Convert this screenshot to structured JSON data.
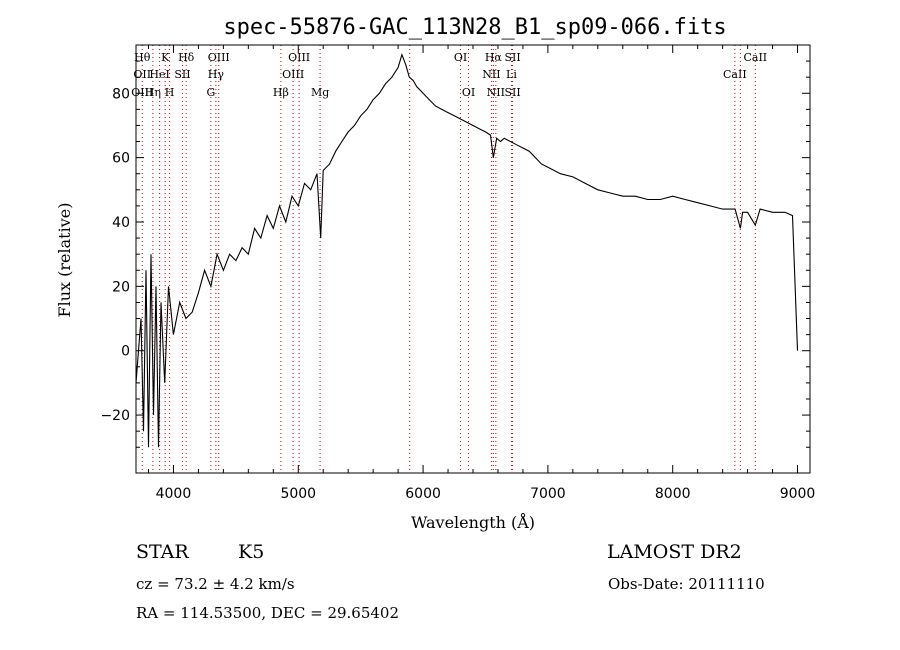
{
  "chart_data": {
    "type": "line",
    "title": "spec-55876-GAC_113N28_B1_sp09-066.fits",
    "xlabel": "Wavelength (Å)",
    "ylabel": "Flux (relative)",
    "xlim": [
      3700,
      9100
    ],
    "ylim": [
      -38,
      95
    ],
    "xticks": [
      4000,
      5000,
      6000,
      7000,
      8000,
      9000
    ],
    "yticks": [
      -20,
      0,
      20,
      40,
      60,
      80
    ],
    "series": [
      {
        "x": [
          3700,
          3740,
          3760,
          3780,
          3800,
          3820,
          3840,
          3860,
          3880,
          3900,
          3930,
          3960,
          4000,
          4050,
          4100,
          4150,
          4200,
          4250,
          4300,
          4350,
          4400,
          4450,
          4500,
          4550,
          4600,
          4650,
          4700,
          4750,
          4800,
          4850,
          4900,
          4950,
          5000,
          5050,
          5100,
          5150,
          5180,
          5200,
          5250,
          5300,
          5350,
          5400,
          5450,
          5500,
          5550,
          5600,
          5650,
          5700,
          5750,
          5800,
          5830,
          5860,
          5890,
          5920,
          5950,
          6000,
          6050,
          6100,
          6150,
          6200,
          6250,
          6300,
          6350,
          6400,
          6450,
          6500,
          6540,
          6563,
          6590,
          6620,
          6650,
          6700,
          6750,
          6800,
          6850,
          6900,
          6950,
          7000,
          7100,
          7200,
          7300,
          7400,
          7500,
          7600,
          7700,
          7800,
          7900,
          8000,
          8100,
          8200,
          8300,
          8400,
          8500,
          8542,
          8560,
          8600,
          8662,
          8700,
          8800,
          8900,
          8960,
          9000
        ],
        "y": [
          -10,
          10,
          -25,
          25,
          -30,
          30,
          -20,
          20,
          -30,
          15,
          -10,
          20,
          5,
          15,
          10,
          12,
          18,
          25,
          20,
          30,
          25,
          30,
          28,
          32,
          30,
          38,
          35,
          42,
          38,
          45,
          40,
          48,
          45,
          52,
          50,
          55,
          35,
          56,
          58,
          62,
          65,
          68,
          70,
          73,
          75,
          78,
          80,
          83,
          85,
          88,
          92,
          89,
          85,
          84,
          82,
          80,
          78,
          76,
          75,
          74,
          73,
          72,
          71,
          70,
          69,
          68,
          67,
          60,
          66,
          65,
          66,
          65,
          64,
          63,
          62,
          60,
          58,
          57,
          55,
          54,
          52,
          50,
          49,
          48,
          48,
          47,
          47,
          48,
          47,
          46,
          45,
          44,
          44,
          38,
          43,
          43,
          39,
          44,
          43,
          43,
          42,
          0
        ]
      }
    ],
    "lines": [
      {
        "wl": 3750,
        "labels": [
          "Hθ",
          "OII",
          "OIII"
        ]
      },
      {
        "wl": 3835,
        "labels": [
          "",
          "",
          "Hη"
        ]
      },
      {
        "wl": 3889,
        "labels": [
          "",
          "HeI",
          ""
        ]
      },
      {
        "wl": 3934,
        "labels": [
          "K",
          "",
          ""
        ]
      },
      {
        "wl": 3969,
        "labels": [
          "",
          "",
          "H"
        ]
      },
      {
        "wl": 4072,
        "labels": [
          "",
          "SII",
          ""
        ]
      },
      {
        "wl": 4102,
        "labels": [
          "Hδ",
          "",
          ""
        ]
      },
      {
        "wl": 4300,
        "labels": [
          "",
          "",
          "G"
        ]
      },
      {
        "wl": 4340,
        "labels": [
          "",
          "Hγ",
          ""
        ]
      },
      {
        "wl": 4363,
        "labels": [
          "OIII",
          "",
          ""
        ]
      },
      {
        "wl": 4861,
        "labels": [
          "",
          "",
          "Hβ"
        ]
      },
      {
        "wl": 4959,
        "labels": [
          "",
          "OIII",
          ""
        ]
      },
      {
        "wl": 5007,
        "labels": [
          "OIII",
          "",
          ""
        ]
      },
      {
        "wl": 5175,
        "labels": [
          "",
          "",
          "Mg"
        ]
      },
      {
        "wl": 5893,
        "labels": [
          "",
          "",
          ""
        ]
      },
      {
        "wl": 6300,
        "labels": [
          "OI",
          "",
          ""
        ]
      },
      {
        "wl": 6364,
        "labels": [
          "",
          "",
          "OI"
        ]
      },
      {
        "wl": 6548,
        "labels": [
          "",
          "NII",
          ""
        ]
      },
      {
        "wl": 6563,
        "labels": [
          "Hα",
          "",
          ""
        ]
      },
      {
        "wl": 6583,
        "labels": [
          "",
          "",
          "NII"
        ]
      },
      {
        "wl": 6708,
        "labels": [
          "",
          "Li",
          ""
        ]
      },
      {
        "wl": 6717,
        "labels": [
          "SII",
          "",
          "SII"
        ]
      },
      {
        "wl": 8498,
        "labels": [
          "",
          "CaII",
          ""
        ]
      },
      {
        "wl": 8542,
        "labels": [
          "",
          "",
          ""
        ]
      },
      {
        "wl": 8662,
        "labels": [
          "CaII",
          "",
          ""
        ]
      }
    ],
    "grid": false,
    "line_color": "#000000",
    "marker_color": "#cc0000"
  },
  "info": {
    "object_class": "STAR",
    "subclass": "K5",
    "survey": "LAMOST DR2",
    "cz": "cz = 73.2 ± 4.2 km/s",
    "obs_date": "Obs-Date: 20111110",
    "coords": "RA = 114.53500, DEC =  29.65402"
  }
}
